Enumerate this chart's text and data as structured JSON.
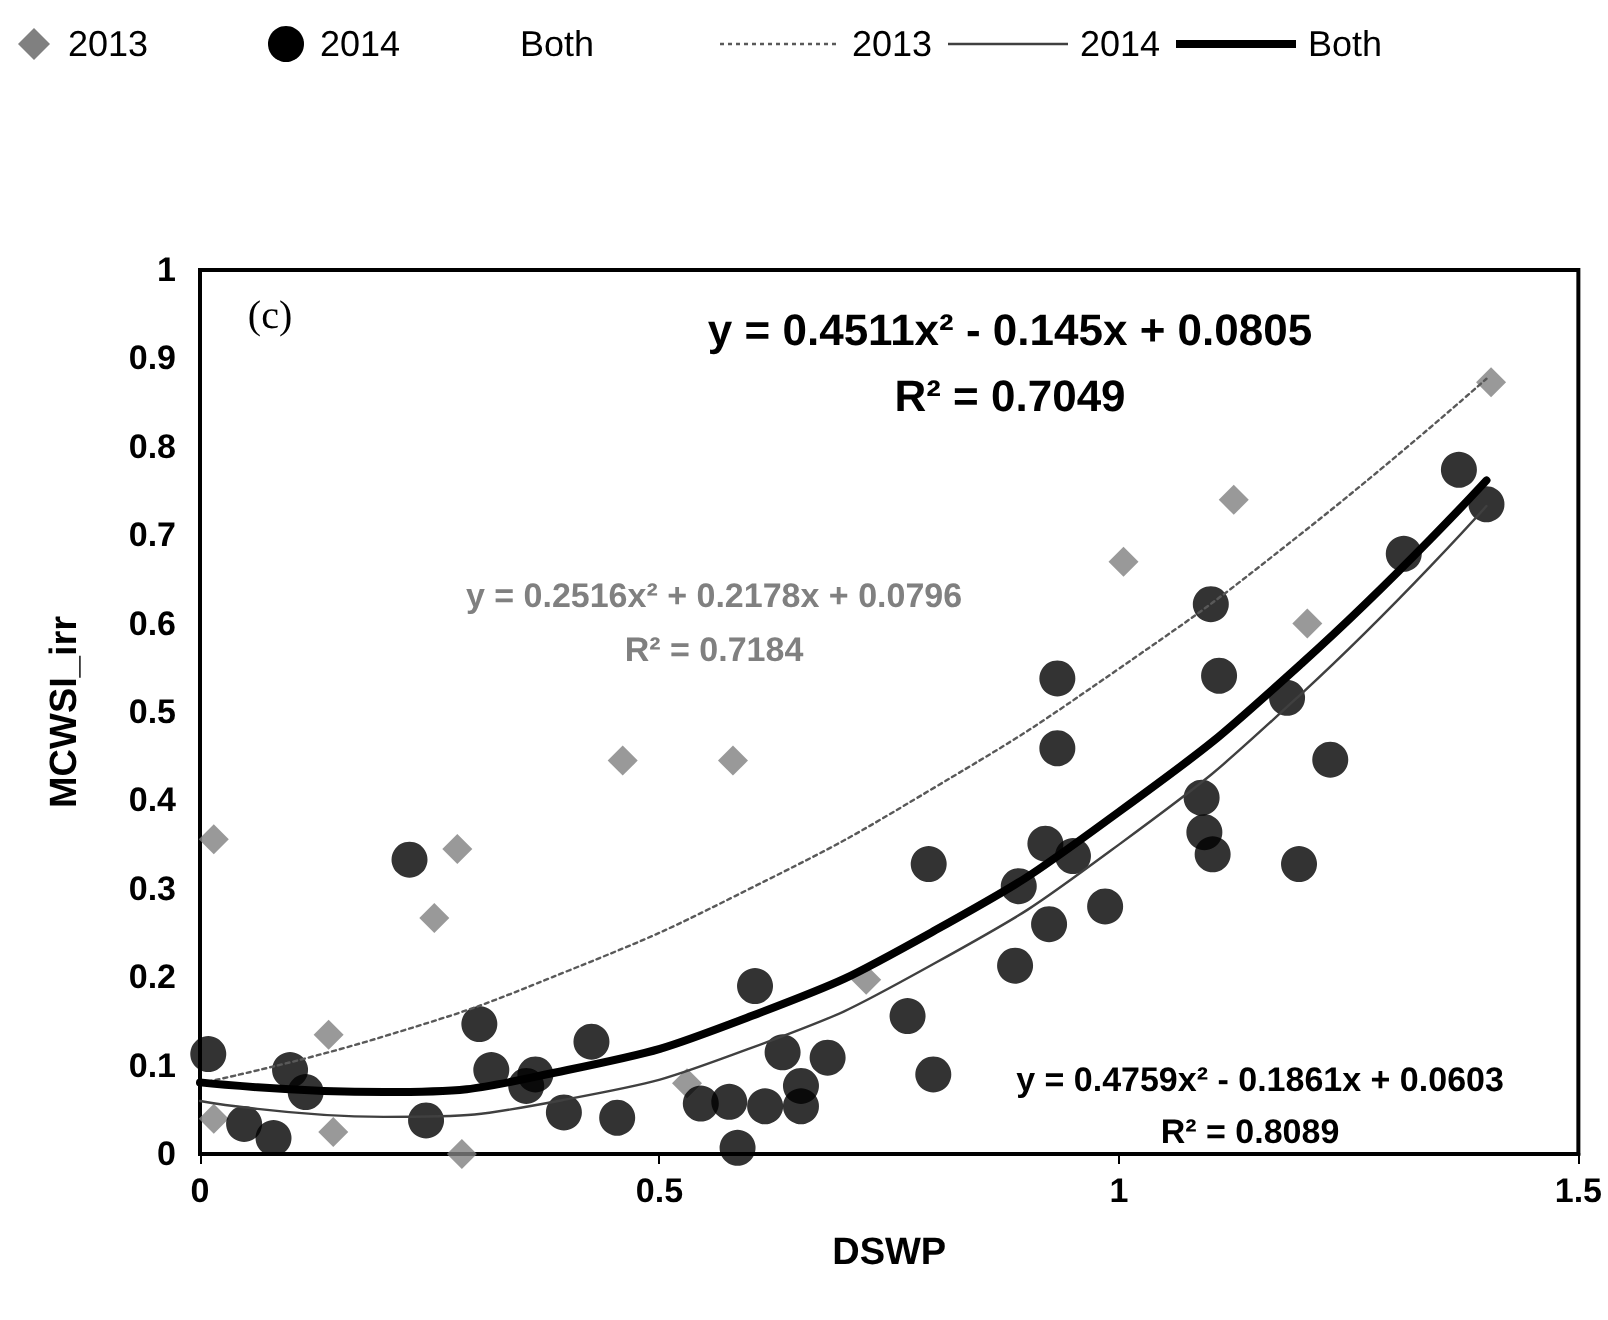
{
  "chart_data": {
    "type": "scatter",
    "xlabel": "DSWP",
    "ylabel": "MCWSI_irr",
    "xlim": [
      0,
      1.5
    ],
    "ylim": [
      0,
      1
    ],
    "xticks": [
      0,
      0.5,
      1,
      1.5
    ],
    "yticks": [
      0,
      0.1,
      0.2,
      0.3,
      0.4,
      0.5,
      0.6,
      0.7,
      0.8,
      0.9,
      1
    ],
    "grid": false,
    "legend": "top",
    "annotations": [
      "(c)",
      "y = 0.4511x² - 0.145x + 0.0805",
      "R² = 0.7049",
      "y = 0.2516x² + 0.2178x + 0.0796",
      "R² = 0.7184",
      "y = 0.4759x² - 0.1861x + 0.0603",
      "R² = 0.8089"
    ],
    "series": [
      {
        "name": "2013",
        "marker": "diamond",
        "color": "#808080",
        "x": [
          0.015,
          0.015,
          0.14,
          0.145,
          0.28,
          0.255,
          0.285,
          0.46,
          0.58,
          0.53,
          0.725,
          1.005,
          1.125,
          1.205,
          1.405
        ],
        "values": [
          0.356,
          0.04,
          0.135,
          0.025,
          0.345,
          0.267,
          0.0,
          0.445,
          0.445,
          0.08,
          0.197,
          0.67,
          0.74,
          0.6,
          0.873
        ]
      },
      {
        "name": "2014",
        "marker": "circle",
        "color": "#000000",
        "x": [
          0.009,
          0.048,
          0.08,
          0.098,
          0.115,
          0.228,
          0.246,
          0.304,
          0.317,
          0.355,
          0.365,
          0.396,
          0.426,
          0.454,
          0.545,
          0.576,
          0.585,
          0.604,
          0.615,
          0.634,
          0.654,
          0.654,
          0.683,
          0.77,
          0.793,
          0.798,
          0.887,
          0.891,
          0.924,
          0.92,
          0.933,
          0.933,
          0.95,
          0.985,
          1.09,
          1.093,
          1.102,
          1.1,
          1.109,
          1.183,
          1.196,
          1.23,
          1.31,
          1.37,
          1.4
        ],
        "values": [
          0.113,
          0.034,
          0.018,
          0.095,
          0.07,
          0.333,
          0.038,
          0.147,
          0.095,
          0.077,
          0.09,
          0.047,
          0.127,
          0.041,
          0.057,
          0.059,
          0.007,
          0.19,
          0.054,
          0.115,
          0.077,
          0.054,
          0.109,
          0.156,
          0.328,
          0.09,
          0.213,
          0.303,
          0.26,
          0.351,
          0.459,
          0.538,
          0.337,
          0.28,
          0.403,
          0.364,
          0.339,
          0.622,
          0.541,
          0.516,
          0.328,
          0.446,
          0.679,
          0.774,
          0.735
        ]
      },
      {
        "name": "Both",
        "marker": "none",
        "color": "#000000"
      },
      {
        "name": "2013",
        "type": "line",
        "line_style": "dotted",
        "color": "#595959",
        "x": [
          0,
          0.2,
          0.4,
          0.6,
          0.8,
          1.0,
          1.2,
          1.4
        ],
        "values": [
          0.08,
          0.133,
          0.207,
          0.301,
          0.415,
          0.549,
          0.703,
          0.877
        ]
      },
      {
        "name": "2014",
        "type": "line",
        "line_style": "solid",
        "color": "#404040",
        "x": [
          0,
          0.2,
          0.4,
          0.6,
          0.8,
          1.0,
          1.2,
          1.4
        ],
        "values": [
          0.06,
          0.042,
          0.062,
          0.12,
          0.216,
          0.35,
          0.522,
          0.733
        ]
      },
      {
        "name": "Both",
        "type": "line",
        "line_style": "solid",
        "color": "#000000",
        "x": [
          0,
          0.2,
          0.4,
          0.6,
          0.8,
          1.0,
          1.2,
          1.4
        ],
        "values": [
          0.081,
          0.07,
          0.095,
          0.156,
          0.253,
          0.387,
          0.556,
          0.762
        ]
      }
    ]
  }
}
